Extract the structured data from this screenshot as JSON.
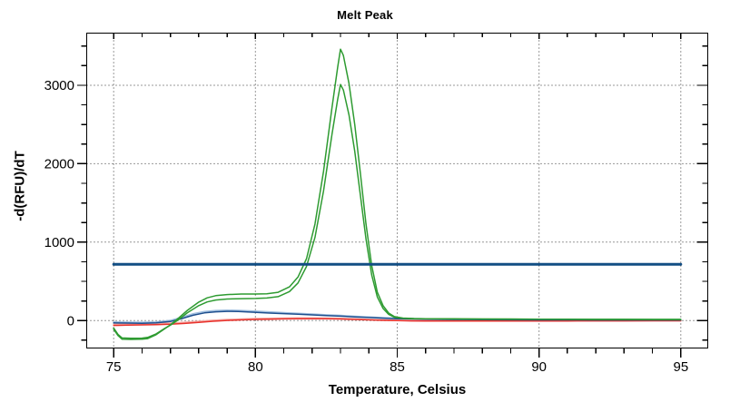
{
  "chart_data": {
    "type": "line",
    "title": "Melt Peak",
    "xlabel": "Temperature, Celsius",
    "ylabel": "-d(RFU)/dT",
    "x_range": [
      74.05,
      95.95
    ],
    "y_range": [
      -350,
      3665
    ],
    "x_ticks": [
      75,
      80,
      85,
      90,
      95
    ],
    "x_minor_step": 1,
    "y_ticks": [
      0,
      1000,
      2000,
      3000
    ],
    "y_minor_step": 250,
    "grid": "dotted-at-major-ticks",
    "legend": "none",
    "colors": {
      "background": "#FFFFFF",
      "axis": "#000000",
      "grid": "#333333",
      "green_trace": "#2E9B31",
      "blue_trace": "#1E4F8E",
      "light_blue_trace": "#9FBEDE",
      "red_trace": "#E8312B",
      "light_red_trace": "#F4A9A4",
      "threshold": "#124E84"
    },
    "series": [
      {
        "name": "melt-trace-light-blue",
        "color": "#9FBEDE",
        "width": 1.6,
        "points": [
          [
            75,
            -18
          ],
          [
            75.5,
            -20
          ],
          [
            76,
            -22
          ],
          [
            76.5,
            -18
          ],
          [
            77,
            2
          ],
          [
            77.4,
            42
          ],
          [
            77.8,
            86
          ],
          [
            78.2,
            115
          ],
          [
            78.6,
            128
          ],
          [
            79,
            132
          ],
          [
            79.4,
            130
          ],
          [
            79.8,
            123
          ],
          [
            80.5,
            110
          ],
          [
            81,
            101
          ],
          [
            81.5,
            92
          ],
          [
            82,
            83
          ],
          [
            82.5,
            74
          ],
          [
            83,
            65
          ],
          [
            83.5,
            55
          ],
          [
            84,
            46
          ],
          [
            84.5,
            37
          ],
          [
            85,
            30
          ],
          [
            85.5,
            25
          ],
          [
            86,
            22
          ],
          [
            87,
            18
          ],
          [
            88,
            15
          ],
          [
            89,
            14
          ],
          [
            90,
            13
          ],
          [
            91,
            12
          ],
          [
            92,
            12
          ],
          [
            93,
            11
          ],
          [
            94,
            11
          ],
          [
            95,
            11
          ]
        ]
      },
      {
        "name": "melt-trace-light-red",
        "color": "#F4A9A4",
        "width": 1.6,
        "points": [
          [
            75,
            -48
          ],
          [
            75.5,
            -45
          ],
          [
            76,
            -42
          ],
          [
            76.5,
            -38
          ],
          [
            77,
            -33
          ],
          [
            77.5,
            -22
          ],
          [
            78,
            -9
          ],
          [
            78.5,
            4
          ],
          [
            79,
            13
          ],
          [
            79.5,
            20
          ],
          [
            80,
            25
          ],
          [
            80.5,
            29
          ],
          [
            81,
            32
          ],
          [
            81.5,
            34
          ],
          [
            82,
            34
          ],
          [
            82.5,
            32
          ],
          [
            83,
            28
          ],
          [
            83.5,
            22
          ],
          [
            84,
            15
          ],
          [
            84.5,
            8
          ],
          [
            85,
            3
          ],
          [
            85.5,
            0
          ],
          [
            86,
            -1
          ],
          [
            87,
            -2
          ],
          [
            88,
            -2
          ],
          [
            89,
            -2
          ],
          [
            90,
            -2
          ],
          [
            91,
            -1
          ],
          [
            92,
            -1
          ],
          [
            93,
            -1
          ],
          [
            94,
            0
          ],
          [
            95,
            0
          ]
        ]
      },
      {
        "name": "melt-trace-red",
        "color": "#E8312B",
        "width": 1.5,
        "points": [
          [
            75,
            -62
          ],
          [
            75.5,
            -58
          ],
          [
            76,
            -55
          ],
          [
            76.5,
            -52
          ],
          [
            77,
            -47
          ],
          [
            77.5,
            -36
          ],
          [
            78,
            -22
          ],
          [
            78.5,
            -9
          ],
          [
            79,
            2
          ],
          [
            79.5,
            9
          ],
          [
            80,
            14
          ],
          [
            80.5,
            18
          ],
          [
            81,
            21
          ],
          [
            81.5,
            23
          ],
          [
            82,
            24
          ],
          [
            82.5,
            23
          ],
          [
            83,
            20
          ],
          [
            83.5,
            15
          ],
          [
            84,
            9
          ],
          [
            84.5,
            3
          ],
          [
            85,
            -1
          ],
          [
            85.5,
            -4
          ],
          [
            86,
            -5
          ],
          [
            87,
            -6
          ],
          [
            88,
            -6
          ],
          [
            89,
            -6
          ],
          [
            90,
            -5
          ],
          [
            91,
            -5
          ],
          [
            92,
            -4
          ],
          [
            93,
            -4
          ],
          [
            94,
            -3
          ],
          [
            95,
            -3
          ]
        ]
      },
      {
        "name": "melt-trace-blue",
        "color": "#1E4F8E",
        "width": 1.5,
        "points": [
          [
            75,
            -30
          ],
          [
            75.5,
            -32
          ],
          [
            76,
            -34
          ],
          [
            76.5,
            -30
          ],
          [
            77,
            -12
          ],
          [
            77.4,
            25
          ],
          [
            77.8,
            68
          ],
          [
            78.2,
            98
          ],
          [
            78.6,
            112
          ],
          [
            79,
            117
          ],
          [
            79.4,
            115
          ],
          [
            79.8,
            108
          ],
          [
            80.5,
            96
          ],
          [
            81,
            88
          ],
          [
            81.5,
            80
          ],
          [
            82,
            72
          ],
          [
            82.5,
            64
          ],
          [
            83,
            56
          ],
          [
            83.5,
            47
          ],
          [
            84,
            39
          ],
          [
            84.5,
            31
          ],
          [
            85,
            24
          ],
          [
            85.5,
            20
          ],
          [
            86,
            17
          ],
          [
            87,
            13
          ],
          [
            88,
            11
          ],
          [
            89,
            10
          ],
          [
            90,
            9
          ],
          [
            91,
            9
          ],
          [
            92,
            8
          ],
          [
            93,
            8
          ],
          [
            94,
            8
          ],
          [
            95,
            8
          ]
        ]
      },
      {
        "name": "melt-trace-green-inner",
        "color": "#2E9B31",
        "width": 1.5,
        "points": [
          [
            75,
            -95
          ],
          [
            75.15,
            -175
          ],
          [
            75.3,
            -222
          ],
          [
            75.6,
            -226
          ],
          [
            76,
            -224
          ],
          [
            76.2,
            -215
          ],
          [
            76.5,
            -170
          ],
          [
            76.8,
            -100
          ],
          [
            77,
            -60
          ],
          [
            77.3,
            15
          ],
          [
            77.6,
            100
          ],
          [
            78,
            190
          ],
          [
            78.3,
            238
          ],
          [
            78.6,
            262
          ],
          [
            79,
            275
          ],
          [
            79.5,
            280
          ],
          [
            80,
            282
          ],
          [
            80.4,
            288
          ],
          [
            80.8,
            305
          ],
          [
            81.2,
            370
          ],
          [
            81.5,
            480
          ],
          [
            81.8,
            690
          ],
          [
            82.1,
            1060
          ],
          [
            82.4,
            1650
          ],
          [
            82.7,
            2380
          ],
          [
            82.9,
            2820
          ],
          [
            83,
            3010
          ],
          [
            83.1,
            2940
          ],
          [
            83.3,
            2620
          ],
          [
            83.5,
            2160
          ],
          [
            83.7,
            1600
          ],
          [
            83.9,
            1040
          ],
          [
            84.1,
            580
          ],
          [
            84.3,
            300
          ],
          [
            84.5,
            155
          ],
          [
            84.7,
            78
          ],
          [
            84.9,
            42
          ],
          [
            85.2,
            28
          ],
          [
            85.6,
            24
          ],
          [
            86,
            22
          ],
          [
            87,
            20
          ],
          [
            88,
            19
          ],
          [
            89,
            18
          ],
          [
            90,
            17
          ],
          [
            91,
            16
          ],
          [
            92,
            15
          ],
          [
            93,
            15
          ],
          [
            94,
            14
          ],
          [
            95,
            14
          ]
        ]
      },
      {
        "name": "melt-trace-green-outer",
        "color": "#2E9B31",
        "width": 1.5,
        "points": [
          [
            75,
            -110
          ],
          [
            75.15,
            -190
          ],
          [
            75.3,
            -238
          ],
          [
            75.6,
            -240
          ],
          [
            76,
            -238
          ],
          [
            76.2,
            -230
          ],
          [
            76.5,
            -180
          ],
          [
            76.8,
            -105
          ],
          [
            77,
            -55
          ],
          [
            77.3,
            35
          ],
          [
            77.6,
            130
          ],
          [
            78,
            235
          ],
          [
            78.3,
            290
          ],
          [
            78.6,
            318
          ],
          [
            79,
            332
          ],
          [
            79.5,
            338
          ],
          [
            80,
            338
          ],
          [
            80.4,
            342
          ],
          [
            80.8,
            360
          ],
          [
            81.2,
            430
          ],
          [
            81.5,
            555
          ],
          [
            81.8,
            790
          ],
          [
            82.1,
            1230
          ],
          [
            82.4,
            1900
          ],
          [
            82.7,
            2720
          ],
          [
            82.9,
            3230
          ],
          [
            83,
            3460
          ],
          [
            83.1,
            3380
          ],
          [
            83.3,
            3020
          ],
          [
            83.5,
            2500
          ],
          [
            83.7,
            1880
          ],
          [
            83.9,
            1230
          ],
          [
            84.1,
            700
          ],
          [
            84.3,
            360
          ],
          [
            84.5,
            190
          ],
          [
            84.7,
            95
          ],
          [
            84.9,
            50
          ],
          [
            85.2,
            32
          ],
          [
            85.6,
            26
          ],
          [
            86,
            24
          ],
          [
            87,
            22
          ],
          [
            88,
            20
          ],
          [
            89,
            20
          ],
          [
            90,
            18
          ],
          [
            91,
            17
          ],
          [
            92,
            16
          ],
          [
            93,
            16
          ],
          [
            94,
            15
          ],
          [
            95,
            15
          ]
        ]
      },
      {
        "name": "melt-threshold-line",
        "color": "#124E84",
        "width": 3,
        "points": [
          [
            75,
            718
          ],
          [
            95,
            718
          ]
        ]
      }
    ]
  }
}
